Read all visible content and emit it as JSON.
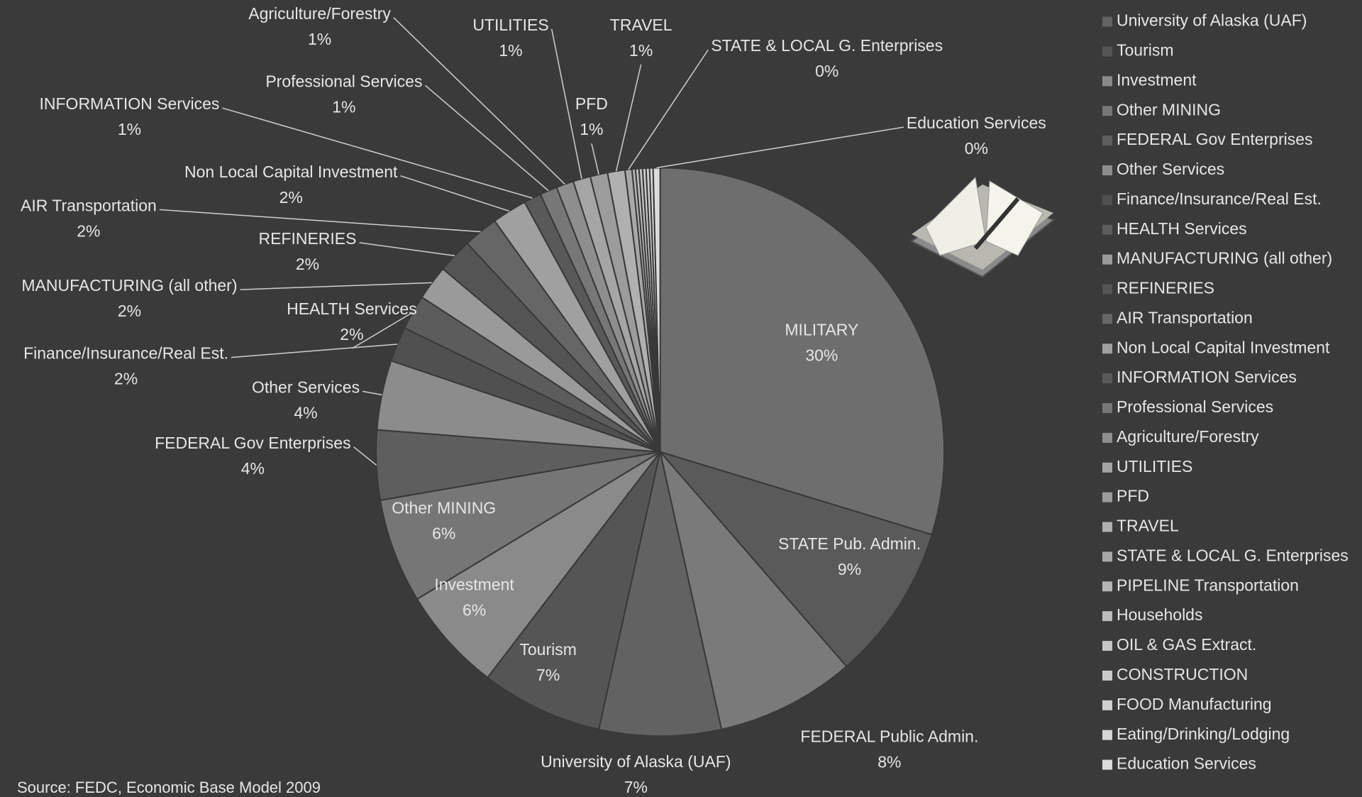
{
  "chart_data": {
    "type": "pie",
    "categories": [
      "MILITARY",
      "STATE Pub. Admin.",
      "FEDERAL Public Admin.",
      "University of Alaska (UAF)",
      "Tourism",
      "Investment",
      "Other MINING",
      "FEDERAL Gov Enterprises",
      "Other Services",
      "Finance/Insurance/Real Est.",
      "HEALTH Services",
      "MANUFACTURING (all other)",
      "REFINERIES",
      "AIR Transportation",
      "Non Local Capital Investment",
      "INFORMATION Services",
      "Professional Services",
      "Agriculture/Forestry",
      "UTILITIES",
      "PFD",
      "TRAVEL",
      "STATE & LOCAL G. Enterprises",
      "PIPELINE Transportation",
      "Households",
      "OIL & GAS Extract.",
      "CONSTRUCTION",
      "FOOD Manufacturing",
      "Eating/Drinking/Lodging",
      "Education Services"
    ],
    "values": [
      30,
      9,
      8,
      7,
      7,
      6,
      6,
      4,
      4,
      2,
      2,
      2,
      2,
      2,
      2,
      1,
      1,
      1,
      1,
      1,
      1,
      0.4,
      0.2,
      0.2,
      0.2,
      0.2,
      0.2,
      0.2,
      0.4
    ],
    "value_labels": [
      "30%",
      "9%",
      "8%",
      "7%",
      "7%",
      "6%",
      "6%",
      "4%",
      "4%",
      "2%",
      "2%",
      "2%",
      "2%",
      "2%",
      "2%",
      "1%",
      "1%",
      "1%",
      "1%",
      "1%",
      "1%",
      "0%",
      null,
      null,
      null,
      null,
      null,
      null,
      "0%"
    ],
    "colors": [
      "#6e6e6e",
      "#5a5a5a",
      "#7a7a7a",
      "#626262",
      "#555555",
      "#8a8a8a",
      "#767676",
      "#5e5e5e",
      "#8c8c8c",
      "#505050",
      "#5c5c5c",
      "#9a9a9a",
      "#545454",
      "#666666",
      "#a0a0a0",
      "#595959",
      "#777777",
      "#8e8e8e",
      "#a5a5a5",
      "#9c9c9c",
      "#b0b0b0",
      "#a8a8a8",
      "#b5b5b5",
      "#bdbdbd",
      "#c5c5c5",
      "#cacaca",
      "#d0d0d0",
      "#d6d6d6",
      "#dcdcdc"
    ],
    "source": "Source:  FEDC, Economic Base Model 2009"
  }
}
